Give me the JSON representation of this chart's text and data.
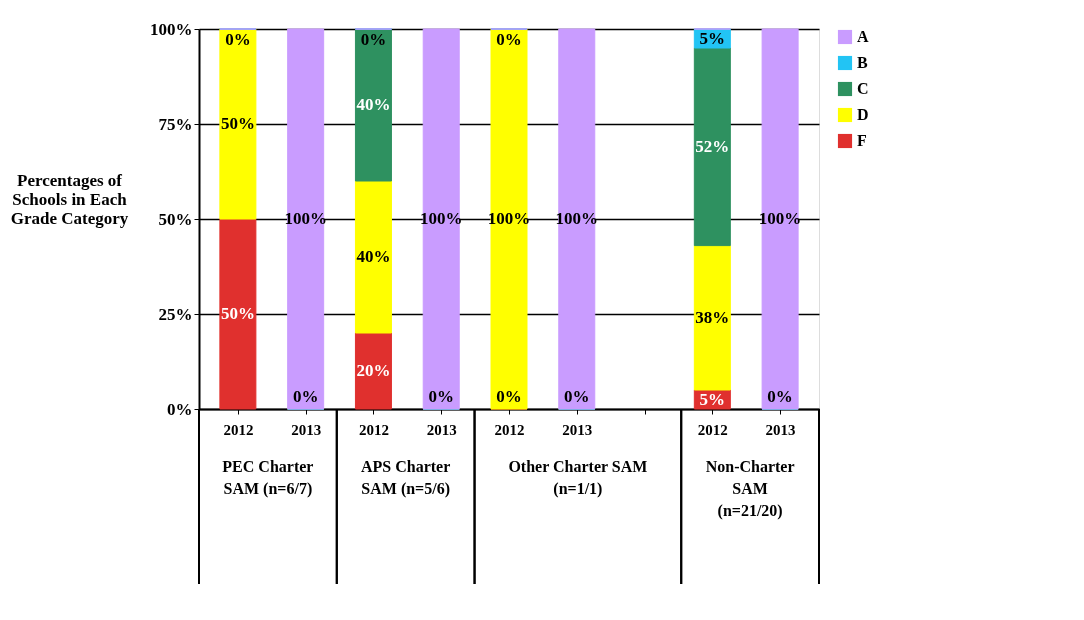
{
  "chart_data": {
    "type": "bar",
    "stacked": true,
    "ylabel": "Percentages of Schools in Each Grade Category",
    "categories": [
      "2012",
      "2013",
      "2012",
      "2013",
      "2012",
      "2013",
      null,
      "2012",
      "2013"
    ],
    "series": [
      {
        "name": "F",
        "color": "#e0302e",
        "values": [
          50,
          0,
          20,
          0,
          0,
          0,
          null,
          5,
          0
        ],
        "value_labels": [
          "50%",
          "0%",
          "20%",
          "0%",
          "0%",
          "0%",
          null,
          "5%",
          "0%"
        ]
      },
      {
        "name": "D",
        "color": "#ffff00",
        "values": [
          50,
          0,
          40,
          0,
          100,
          0,
          null,
          38,
          0
        ],
        "value_labels": [
          "50%",
          null,
          "40%",
          null,
          "100%",
          null,
          null,
          "38%",
          null
        ]
      },
      {
        "name": "C",
        "color": "#2e9160",
        "values": [
          0,
          0,
          40,
          0,
          0,
          0,
          null,
          52,
          0
        ],
        "value_labels": [
          null,
          null,
          "40%",
          null,
          null,
          null,
          null,
          "52%",
          null
        ]
      },
      {
        "name": "B",
        "color": "#22c4f4",
        "values": [
          0,
          0,
          0,
          0,
          0,
          0,
          null,
          5,
          0
        ],
        "value_labels": [
          null,
          null,
          null,
          null,
          null,
          null,
          null,
          "5%",
          null
        ]
      },
      {
        "name": "A",
        "color": "#c99cff",
        "values": [
          0,
          100,
          0,
          100,
          0,
          100,
          null,
          0,
          100
        ],
        "value_labels": [
          "0%",
          "100%",
          "0%",
          "100%",
          "0%",
          "100%",
          null,
          null,
          "100%"
        ]
      }
    ],
    "ylim": [
      0,
      100
    ],
    "yticks": [
      {
        "value": 0,
        "label": "0%"
      },
      {
        "value": 25,
        "label": "25%"
      },
      {
        "value": 50,
        "label": "50%"
      },
      {
        "value": 75,
        "label": "75%"
      },
      {
        "value": 100,
        "label": "100%"
      }
    ],
    "grid": "y",
    "legend": "right",
    "annotations": [
      "PEC Charter\nSAM (n=6/7)",
      "APS Charter\nSAM (n=5/6)",
      "Other Charter SAM\n(n=1/1)",
      "Non-Charter\nSAM\n(n=21/20)"
    ]
  }
}
